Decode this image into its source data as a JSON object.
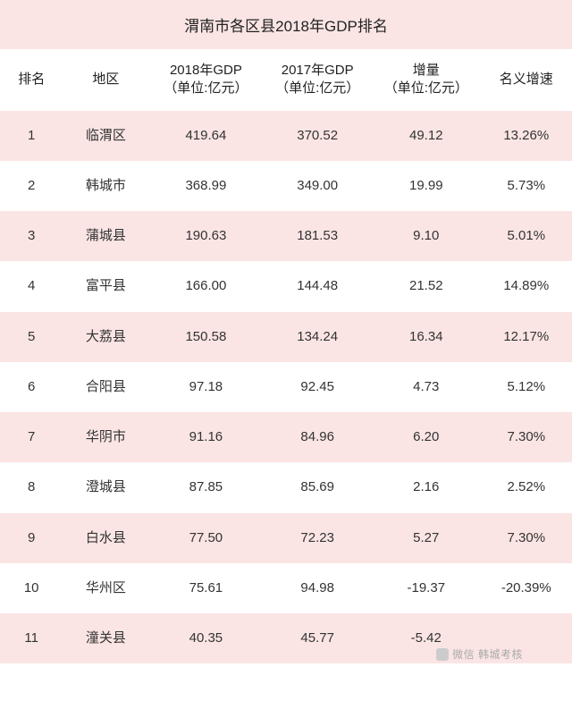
{
  "title": "渭南市各区县2018年GDP排名",
  "columns": {
    "rank": "排名",
    "region": "地区",
    "gdp2018_l1": "2018年GDP",
    "gdp2018_l2": "（单位:亿元）",
    "gdp2017_l1": "2017年GDP",
    "gdp2017_l2": "（单位:亿元）",
    "delta_l1": "增量",
    "delta_l2": "（单位:亿元）",
    "rate": "名义增速"
  },
  "rows": [
    {
      "rank": "1",
      "region": "临渭区",
      "gdp2018": "419.64",
      "gdp2017": "370.52",
      "delta": "49.12",
      "rate": "13.26%"
    },
    {
      "rank": "2",
      "region": "韩城市",
      "gdp2018": "368.99",
      "gdp2017": "349.00",
      "delta": "19.99",
      "rate": "5.73%"
    },
    {
      "rank": "3",
      "region": "蒲城县",
      "gdp2018": "190.63",
      "gdp2017": "181.53",
      "delta": "9.10",
      "rate": "5.01%"
    },
    {
      "rank": "4",
      "region": "富平县",
      "gdp2018": "166.00",
      "gdp2017": "144.48",
      "delta": "21.52",
      "rate": "14.89%"
    },
    {
      "rank": "5",
      "region": "大荔县",
      "gdp2018": "150.58",
      "gdp2017": "134.24",
      "delta": "16.34",
      "rate": "12.17%"
    },
    {
      "rank": "6",
      "region": "合阳县",
      "gdp2018": "97.18",
      "gdp2017": "92.45",
      "delta": "4.73",
      "rate": "5.12%"
    },
    {
      "rank": "7",
      "region": "华阴市",
      "gdp2018": "91.16",
      "gdp2017": "84.96",
      "delta": "6.20",
      "rate": "7.30%"
    },
    {
      "rank": "8",
      "region": "澄城县",
      "gdp2018": "87.85",
      "gdp2017": "85.69",
      "delta": "2.16",
      "rate": "2.52%"
    },
    {
      "rank": "9",
      "region": "白水县",
      "gdp2018": "77.50",
      "gdp2017": "72.23",
      "delta": "5.27",
      "rate": "7.30%"
    },
    {
      "rank": "10",
      "region": "华州区",
      "gdp2018": "75.61",
      "gdp2017": "94.98",
      "delta": "-19.37",
      "rate": "-20.39%"
    },
    {
      "rank": "11",
      "region": "潼关县",
      "gdp2018": "40.35",
      "gdp2017": "45.77",
      "delta": "-5.42",
      "rate": ""
    }
  ],
  "watermark": {
    "prefix": "微信",
    "name": "韩城考核"
  },
  "style": {
    "stripe_color": "#fae5e4",
    "bg_color": "#ffffff",
    "text_color": "#333333",
    "title_fontsize": 17,
    "header_fontsize": 15,
    "cell_fontsize": 15,
    "col_widths_pct": [
      11,
      15,
      20,
      19,
      19,
      16
    ]
  }
}
